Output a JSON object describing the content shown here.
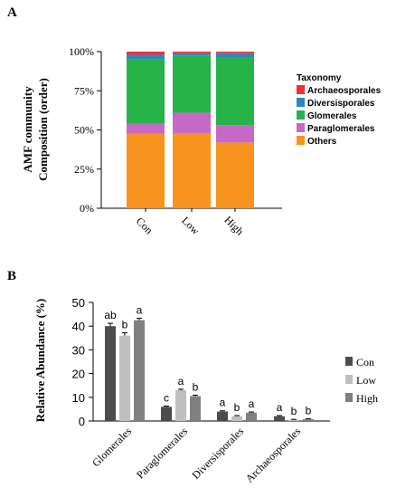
{
  "chart_data": [
    {
      "panel_label": "A",
      "type": "bar",
      "stacked": true,
      "percent": true,
      "categories": [
        "Con",
        "Low",
        "High"
      ],
      "ylabel_lines": [
        "AMF community",
        "Composition (order)"
      ],
      "yticks": [
        "0%",
        "25%",
        "50%",
        "75%",
        "100%"
      ],
      "ylim": [
        0,
        100
      ],
      "legend": {
        "title": "Taxonomy",
        "placement": "right"
      },
      "series": [
        {
          "name": "Others",
          "color": "#F7941D",
          "values": [
            47.5,
            48,
            42
          ]
        },
        {
          "name": "Paraglomerales",
          "color": "#C669C6",
          "values": [
            6.5,
            13,
            11
          ]
        },
        {
          "name": "Glomerales",
          "color": "#27B24A",
          "values": [
            41,
            36.5,
            43
          ]
        },
        {
          "name": "Diversisporales",
          "color": "#2E86C1",
          "values": [
            3,
            1.5,
            3
          ]
        },
        {
          "name": "Archaeosporales",
          "color": "#EE3134",
          "values": [
            2,
            1,
            1
          ]
        }
      ]
    },
    {
      "panel_label": "B",
      "type": "bar",
      "grouped": true,
      "categories": [
        "Glomerales",
        "Paraglomerales",
        "Diversisporales",
        "Archaeosporales"
      ],
      "ylabel": "Relative Abundance (%)",
      "yticks": [
        "0",
        "10",
        "20",
        "30",
        "40",
        "50"
      ],
      "ylim": [
        0,
        50
      ],
      "legend": {
        "placement": "right"
      },
      "series": [
        {
          "name": "Con",
          "color": "#4D4D4D",
          "values": [
            40,
            6,
            4,
            2
          ],
          "errors": [
            1.2,
            0.3,
            0.3,
            0.3
          ],
          "letters": [
            "ab",
            "c",
            "a",
            "a"
          ]
        },
        {
          "name": "Low",
          "color": "#BFBFBF",
          "values": [
            36,
            13,
            2,
            0.5
          ],
          "errors": [
            1.2,
            0.4,
            0.3,
            0.2
          ],
          "letters": [
            "b",
            "a",
            "b",
            "b"
          ]
        },
        {
          "name": "High",
          "color": "#808080",
          "values": [
            42.5,
            10.5,
            3.5,
            0.8
          ],
          "errors": [
            0.8,
            0.4,
            0.3,
            0.2
          ],
          "letters": [
            "a",
            "b",
            "a",
            "b"
          ]
        }
      ]
    }
  ]
}
